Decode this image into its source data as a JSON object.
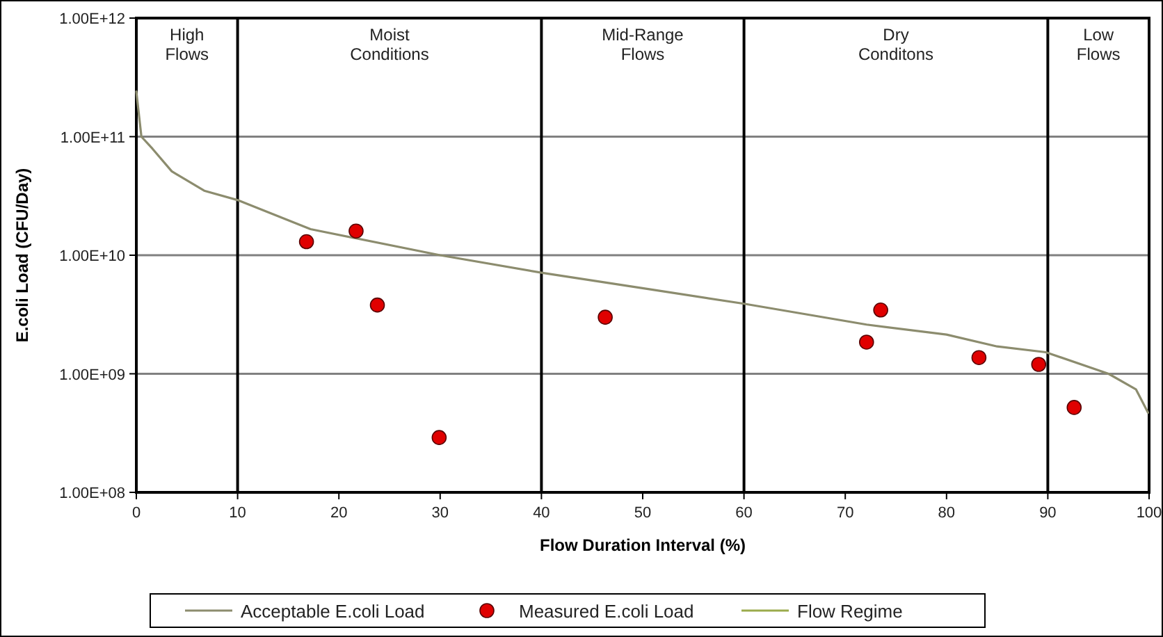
{
  "chart_data": {
    "type": "scatter",
    "xlabel": "Flow Duration Interval (%)",
    "ylabel": "E.coli Load (CFU/Day)",
    "xlim": [
      0,
      100
    ],
    "xticks": [
      0,
      10,
      20,
      30,
      40,
      50,
      60,
      70,
      80,
      90,
      100
    ],
    "ylim": [
      100000000,
      1000000000000
    ],
    "yticks": [
      {
        "value": 100000000,
        "label": "1.00E+08"
      },
      {
        "value": 1000000000,
        "label": "1.00E+09"
      },
      {
        "value": 10000000000,
        "label": "1.00E+10"
      },
      {
        "value": 100000000000,
        "label": "1.00E+11"
      },
      {
        "value": 1000000000000,
        "label": "1.00E+12"
      }
    ],
    "log": "y",
    "grid": "y",
    "legend": "bottom",
    "series": [
      {
        "name": "Acceptable E.coli Load",
        "type": "line",
        "color": "#8c8c6e",
        "marker": "none",
        "x": [
          0,
          0.5,
          1.6,
          3.5,
          6.7,
          10.1,
          17.2,
          30,
          40.1,
          51.1,
          60,
          72.1,
          80,
          85,
          89.8,
          96,
          98.7,
          99.9
        ],
        "values": [
          240000000000,
          100000000000,
          79000000000,
          51000000000,
          35000000000,
          29000000000,
          16600000000,
          10000000000,
          7100000000,
          5100000000,
          3900000000,
          2600000000,
          2140000000,
          1700000000,
          1520000000,
          1000000000,
          740000000,
          470000000
        ]
      },
      {
        "name": "Measured E.coli Load",
        "color": "#e00000",
        "marker": "circle",
        "x": [
          16.8,
          21.7,
          23.8,
          29.9,
          46.3,
          72.1,
          73.5,
          83.2,
          89.1,
          92.6
        ],
        "values": [
          13000000000,
          16000000000,
          3800000000,
          290000000,
          3000000000,
          1850000000,
          3450000000,
          1370000000,
          1200000000,
          520000000
        ]
      },
      {
        "name": "Flow Regime",
        "type": "line",
        "color": "#9bab4c"
      }
    ],
    "ref_lines": [
      {
        "axis": "x",
        "value": 10,
        "color": "#000000"
      },
      {
        "axis": "x",
        "value": 40,
        "color": "#000000"
      },
      {
        "axis": "x",
        "value": 60,
        "color": "#000000"
      },
      {
        "axis": "x",
        "value": 90,
        "color": "#000000"
      }
    ],
    "annotations": [
      "High Flows",
      "Moist Conditions",
      "Mid-Range Flows",
      "Dry Conditons",
      "Low Flows"
    ]
  }
}
